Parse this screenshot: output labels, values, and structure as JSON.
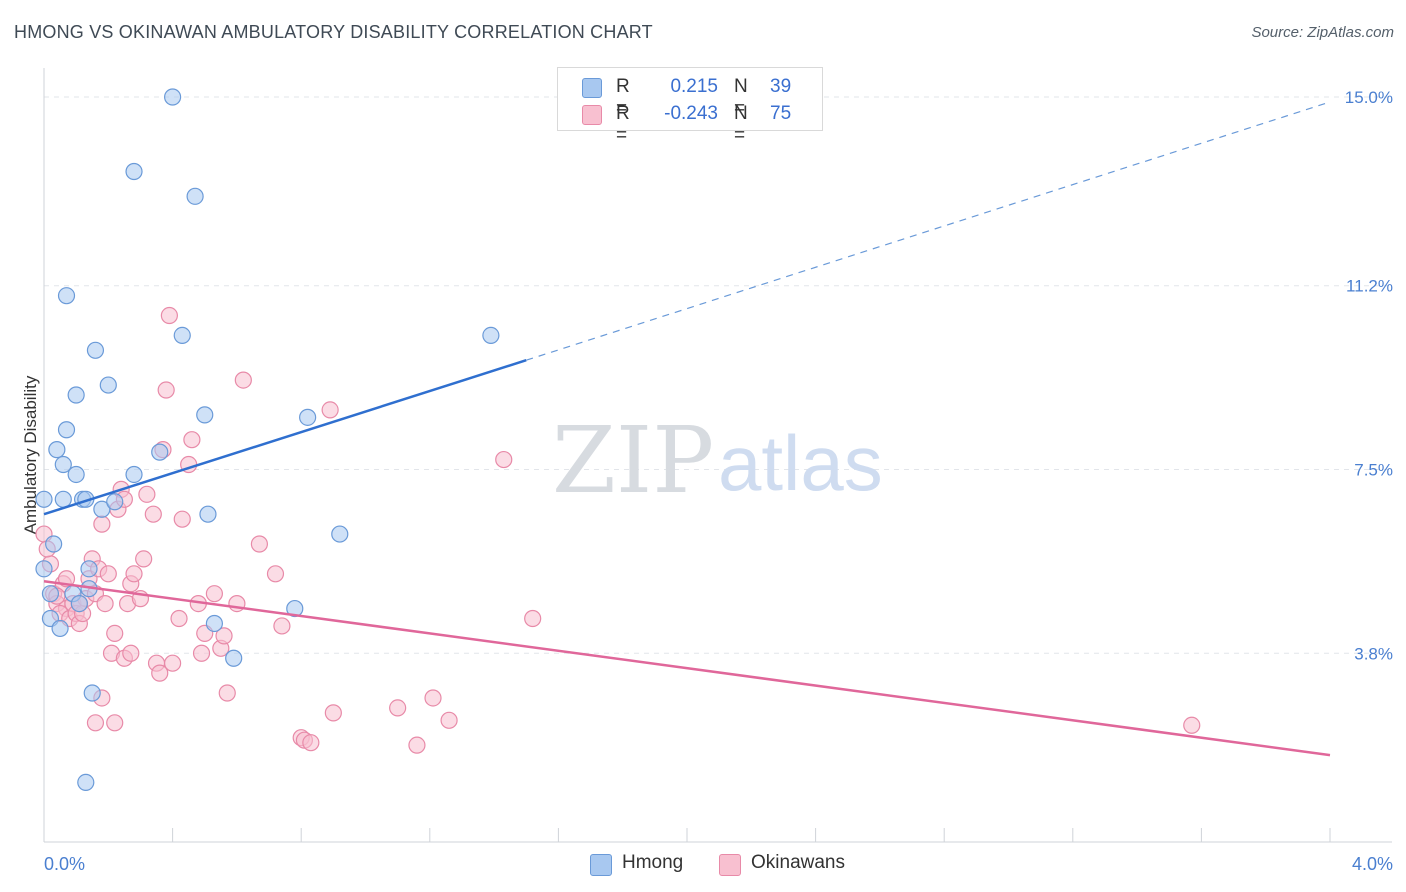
{
  "title": "HMONG VS OKINAWAN AMBULATORY DISABILITY CORRELATION CHART",
  "source": "Source: ZipAtlas.com",
  "watermark": {
    "zip": "ZIP",
    "atlas": "atlas"
  },
  "legend": {
    "rows": [
      {
        "r_label": "R =",
        "r_value": "0.215",
        "n_label": "N =",
        "n_value": "39",
        "color": "#a8c8f0",
        "border": "#6a9ad8"
      },
      {
        "r_label": "R =",
        "r_value": "-0.243",
        "n_label": "N =",
        "n_value": "75",
        "color": "#f8c0d0",
        "border": "#e88aa8"
      }
    ]
  },
  "bottom_legend": {
    "hmong": "Hmong",
    "okinawans": "Okinawans"
  },
  "chart_data": {
    "type": "scatter",
    "xlabel": "",
    "ylabel": "Ambulatory Disability",
    "xlim": [
      0.0,
      4.0
    ],
    "ylim": [
      0.0,
      15.0
    ],
    "x_tick_labels": [
      {
        "value": 0.0,
        "label": "0.0%"
      },
      {
        "value": 4.0,
        "label": "4.0%"
      }
    ],
    "y_tick_labels": [
      {
        "value": 3.8,
        "label": "3.8%"
      },
      {
        "value": 7.5,
        "label": "7.5%"
      },
      {
        "value": 11.2,
        "label": "11.2%"
      },
      {
        "value": 15.0,
        "label": "15.0%"
      }
    ],
    "grid": "horizontal dashed",
    "legend_position": "top-center",
    "series": [
      {
        "name": "Hmong",
        "color": "#6a9ad8",
        "fill": "#a8c8f0",
        "points": [
          [
            0.0,
            6.9
          ],
          [
            0.03,
            6.0
          ],
          [
            0.02,
            5.0
          ],
          [
            0.02,
            4.5
          ],
          [
            0.05,
            4.3
          ],
          [
            0.0,
            5.5
          ],
          [
            0.06,
            6.9
          ],
          [
            0.04,
            7.9
          ],
          [
            0.06,
            7.6
          ],
          [
            0.1,
            7.4
          ],
          [
            0.12,
            6.9
          ],
          [
            0.13,
            6.9
          ],
          [
            0.09,
            5.0
          ],
          [
            0.11,
            4.8
          ],
          [
            0.14,
            5.1
          ],
          [
            0.14,
            5.5
          ],
          [
            0.18,
            6.7
          ],
          [
            0.22,
            6.85
          ],
          [
            0.28,
            7.4
          ],
          [
            0.36,
            7.85
          ],
          [
            0.51,
            6.6
          ],
          [
            0.07,
            8.3
          ],
          [
            0.1,
            9.0
          ],
          [
            0.2,
            9.2
          ],
          [
            0.16,
            9.9
          ],
          [
            0.07,
            11.0
          ],
          [
            0.43,
            10.2
          ],
          [
            0.5,
            8.6
          ],
          [
            0.82,
            8.55
          ],
          [
            0.92,
            6.2
          ],
          [
            0.78,
            4.7
          ],
          [
            0.53,
            4.4
          ],
          [
            0.59,
            3.7
          ],
          [
            0.15,
            3.0
          ],
          [
            0.13,
            1.2
          ],
          [
            0.28,
            13.5
          ],
          [
            0.47,
            13.0
          ],
          [
            0.4,
            15.0
          ],
          [
            1.39,
            10.2
          ]
        ]
      },
      {
        "name": "Okinawans",
        "color": "#e88aa8",
        "fill": "#f8c0d0",
        "points": [
          [
            0.0,
            6.2
          ],
          [
            0.02,
            5.6
          ],
          [
            0.03,
            5.0
          ],
          [
            0.04,
            4.8
          ],
          [
            0.06,
            5.2
          ],
          [
            0.07,
            4.7
          ],
          [
            0.05,
            4.6
          ],
          [
            0.08,
            4.5
          ],
          [
            0.09,
            4.8
          ],
          [
            0.1,
            4.6
          ],
          [
            0.11,
            4.4
          ],
          [
            0.12,
            4.6
          ],
          [
            0.13,
            4.9
          ],
          [
            0.14,
            5.3
          ],
          [
            0.15,
            5.7
          ],
          [
            0.16,
            5.0
          ],
          [
            0.17,
            5.5
          ],
          [
            0.18,
            6.4
          ],
          [
            0.19,
            4.8
          ],
          [
            0.2,
            5.4
          ],
          [
            0.21,
            3.8
          ],
          [
            0.22,
            4.2
          ],
          [
            0.23,
            6.7
          ],
          [
            0.24,
            7.1
          ],
          [
            0.25,
            6.9
          ],
          [
            0.26,
            4.8
          ],
          [
            0.27,
            5.2
          ],
          [
            0.28,
            5.4
          ],
          [
            0.3,
            4.9
          ],
          [
            0.31,
            5.7
          ],
          [
            0.32,
            7.0
          ],
          [
            0.34,
            6.6
          ],
          [
            0.35,
            3.6
          ],
          [
            0.36,
            3.4
          ],
          [
            0.37,
            7.9
          ],
          [
            0.38,
            9.1
          ],
          [
            0.39,
            10.6
          ],
          [
            0.4,
            3.6
          ],
          [
            0.42,
            4.5
          ],
          [
            0.43,
            6.5
          ],
          [
            0.45,
            7.6
          ],
          [
            0.46,
            8.1
          ],
          [
            0.48,
            4.8
          ],
          [
            0.49,
            3.8
          ],
          [
            0.5,
            4.2
          ],
          [
            0.53,
            5.0
          ],
          [
            0.55,
            3.9
          ],
          [
            0.56,
            4.15
          ],
          [
            0.57,
            3.0
          ],
          [
            0.62,
            9.3
          ],
          [
            0.67,
            6.0
          ],
          [
            0.72,
            5.4
          ],
          [
            0.74,
            4.35
          ],
          [
            0.8,
            2.1
          ],
          [
            0.81,
            2.05
          ],
          [
            0.83,
            2.0
          ],
          [
            0.9,
            2.6
          ],
          [
            0.89,
            8.7
          ],
          [
            1.1,
            2.7
          ],
          [
            1.16,
            1.95
          ],
          [
            1.21,
            2.9
          ],
          [
            1.26,
            2.45
          ],
          [
            1.43,
            7.7
          ],
          [
            1.52,
            4.5
          ],
          [
            3.57,
            2.35
          ],
          [
            0.16,
            2.4
          ],
          [
            0.22,
            2.4
          ],
          [
            0.18,
            2.9
          ],
          [
            0.25,
            3.7
          ],
          [
            0.27,
            3.8
          ],
          [
            0.11,
            4.8
          ],
          [
            0.07,
            5.3
          ],
          [
            0.04,
            4.95
          ],
          [
            0.6,
            4.8
          ],
          [
            0.01,
            5.9
          ]
        ]
      }
    ],
    "trend_lines": [
      {
        "series": "Hmong",
        "x_start": 0.0,
        "y_start": 6.6,
        "x_solid_end": 1.5,
        "y_solid_end": 9.7,
        "x_end": 4.0,
        "y_end": 14.9,
        "style": "solid then dashed"
      },
      {
        "series": "Okinawans",
        "x_start": 0.0,
        "y_start": 5.25,
        "x_end": 4.0,
        "y_end": 1.75,
        "style": "solid"
      }
    ]
  }
}
